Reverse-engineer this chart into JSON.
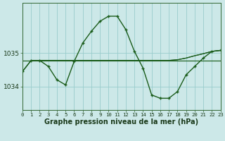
{
  "bg_color": "#cce8e8",
  "grid_color": "#99cccc",
  "line_color": "#1a5c1a",
  "xlabel": "Graphe pression niveau de la mer (hPa)",
  "xlim": [
    0,
    23
  ],
  "ylim": [
    1033.3,
    1036.5
  ],
  "yticks": [
    1034,
    1035
  ],
  "xticks": [
    0,
    1,
    2,
    3,
    4,
    5,
    6,
    7,
    8,
    9,
    10,
    11,
    12,
    13,
    14,
    15,
    16,
    17,
    18,
    19,
    20,
    21,
    22,
    23
  ],
  "main_x": [
    0,
    1,
    2,
    3,
    4,
    5,
    6,
    7,
    8,
    9,
    10,
    11,
    12,
    13,
    14,
    15,
    16,
    17,
    18,
    19,
    20,
    21,
    22,
    23
  ],
  "main_y": [
    1034.45,
    1034.78,
    1034.78,
    1034.6,
    1034.2,
    1034.05,
    1034.75,
    1035.3,
    1035.65,
    1035.95,
    1036.1,
    1036.1,
    1035.7,
    1035.05,
    1034.55,
    1033.75,
    1033.65,
    1033.65,
    1033.85,
    1034.35,
    1034.6,
    1034.85,
    1035.05,
    1035.08
  ],
  "flat_a_x": [
    0,
    1,
    2,
    3,
    4,
    5,
    6,
    7,
    8,
    9,
    10,
    11,
    12,
    13,
    14,
    15,
    16,
    17,
    18,
    19,
    20,
    21,
    22,
    23
  ],
  "flat_a_y": [
    1034.78,
    1034.78,
    1034.78,
    1034.78,
    1034.78,
    1034.78,
    1034.78,
    1034.78,
    1034.78,
    1034.78,
    1034.78,
    1034.78,
    1034.78,
    1034.78,
    1034.78,
    1034.78,
    1034.78,
    1034.78,
    1034.78,
    1034.78,
    1034.78,
    1034.78,
    1034.78,
    1034.78
  ],
  "flat_b_x": [
    0,
    1,
    2,
    3,
    4,
    5,
    6,
    7,
    8,
    9,
    10,
    11,
    12,
    13,
    14,
    15,
    16,
    17,
    18,
    19,
    20,
    21,
    22,
    23
  ],
  "flat_b_y": [
    1034.45,
    1034.78,
    1034.78,
    1034.78,
    1034.78,
    1034.78,
    1034.78,
    1034.78,
    1034.78,
    1034.78,
    1034.78,
    1034.78,
    1034.78,
    1034.78,
    1034.78,
    1034.78,
    1034.78,
    1034.78,
    1034.8,
    1034.85,
    1034.92,
    1034.98,
    1035.05,
    1035.08
  ],
  "flat_c_x": [
    2,
    3,
    4,
    5,
    6,
    7,
    8,
    9,
    10,
    11,
    12,
    13,
    14,
    15,
    16,
    17,
    18,
    19,
    20,
    21,
    22,
    23
  ],
  "flat_c_y": [
    1034.78,
    1034.78,
    1034.78,
    1034.78,
    1034.78,
    1034.78,
    1034.78,
    1034.78,
    1034.78,
    1034.78,
    1034.78,
    1034.78,
    1034.78,
    1034.78,
    1034.78,
    1034.78,
    1034.8,
    1034.85,
    1034.92,
    1034.98,
    1035.05,
    1035.08
  ]
}
